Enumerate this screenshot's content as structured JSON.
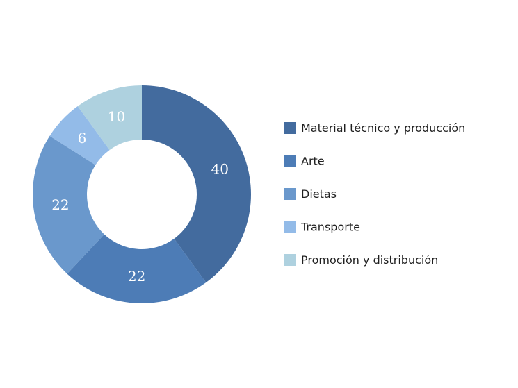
{
  "chart_data": {
    "type": "pie",
    "variant": "donut",
    "categories": [
      "Material técnico y producción",
      "Arte",
      "Dietas",
      "Transporte",
      "Promoción y distribución"
    ],
    "values": [
      40,
      22,
      22,
      6,
      10
    ],
    "data_labels": [
      "40",
      "22",
      "22",
      "6",
      "10"
    ],
    "colors": [
      "#436b9e",
      "#4d7cb6",
      "#6a98cc",
      "#93bbe8",
      "#aed1df"
    ],
    "label_color": "#ffffff",
    "legend_position": "right",
    "start_angle": "top",
    "direction": "clockwise"
  }
}
